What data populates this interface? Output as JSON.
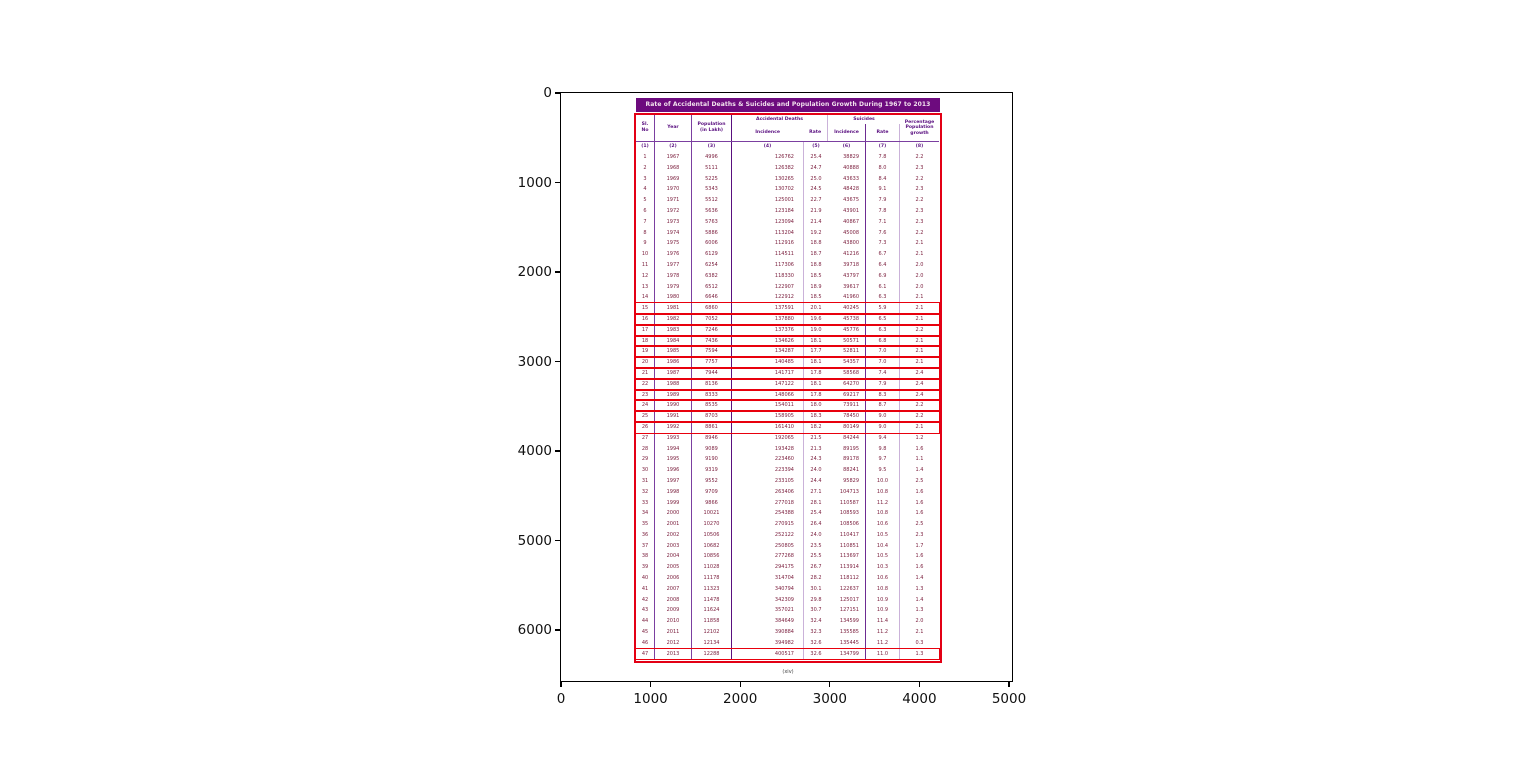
{
  "chart_data": {
    "type": "table",
    "title": "Rate of Accidental Deaths & Suicides and Population Growth During 1967 to 2013",
    "caption": "(xiv)",
    "axes": {
      "x_ticks": [
        "0",
        "1000",
        "2000",
        "3000",
        "4000",
        "5000"
      ],
      "y_ticks": [
        "0",
        "1000",
        "2000",
        "3000",
        "4000",
        "5000",
        "6000"
      ],
      "grid": "off",
      "note": "matplotlib-style axes displaying the table as an image"
    },
    "columns": {
      "sl_no": "Sl.\nNo",
      "year": "Year",
      "population": "Population\n(in Lakh)",
      "accidental_group": "Accidental Deaths",
      "suicides_group": "Suicides",
      "incidence": "Incidence",
      "rate": "Rate",
      "growth": "Percentage\nPopulation\ngrowth"
    },
    "column_numbers": [
      "(1)",
      "(2)",
      "(3)",
      "(4)",
      "(5)",
      "(6)",
      "(7)",
      "(8)"
    ],
    "rows": [
      [
        1,
        "1967",
        "4996",
        "126762",
        "25.4",
        "38829",
        "7.8",
        "2.2"
      ],
      [
        2,
        "1968",
        "5111",
        "126382",
        "24.7",
        "40888",
        "8.0",
        "2.3"
      ],
      [
        3,
        "1969",
        "5225",
        "130265",
        "25.0",
        "43633",
        "8.4",
        "2.2"
      ],
      [
        4,
        "1970",
        "5343",
        "130702",
        "24.5",
        "48428",
        "9.1",
        "2.3"
      ],
      [
        5,
        "1971",
        "5512",
        "125001",
        "22.7",
        "43675",
        "7.9",
        "2.2"
      ],
      [
        6,
        "1972",
        "5636",
        "123184",
        "21.9",
        "43901",
        "7.8",
        "2.3"
      ],
      [
        7,
        "1973",
        "5763",
        "123094",
        "21.4",
        "40867",
        "7.1",
        "2.3"
      ],
      [
        8,
        "1974",
        "5886",
        "113204",
        "19.2",
        "45008",
        "7.6",
        "2.2"
      ],
      [
        9,
        "1975",
        "6006",
        "112916",
        "18.8",
        "43800",
        "7.3",
        "2.1"
      ],
      [
        10,
        "1976",
        "6129",
        "114511",
        "18.7",
        "41216",
        "6.7",
        "2.1"
      ],
      [
        11,
        "1977",
        "6254",
        "117306",
        "18.8",
        "39718",
        "6.4",
        "2.0"
      ],
      [
        12,
        "1978",
        "6382",
        "118330",
        "18.5",
        "43797",
        "6.9",
        "2.0"
      ],
      [
        13,
        "1979",
        "6512",
        "122907",
        "18.9",
        "39617",
        "6.1",
        "2.0"
      ],
      [
        14,
        "1980",
        "6646",
        "122912",
        "18.5",
        "41960",
        "6.3",
        "2.1"
      ],
      [
        15,
        "1981",
        "6860",
        "137591",
        "20.1",
        "40245",
        "5.9",
        "2.1"
      ],
      [
        16,
        "1982",
        "7052",
        "137880",
        "19.6",
        "45738",
        "6.5",
        "2.1"
      ],
      [
        17,
        "1983",
        "7246",
        "137376",
        "19.0",
        "45776",
        "6.3",
        "2.2"
      ],
      [
        18,
        "1984",
        "7436",
        "134626",
        "18.1",
        "50571",
        "6.8",
        "2.1"
      ],
      [
        19,
        "1985",
        "7594",
        "134287",
        "17.7",
        "52811",
        "7.0",
        "2.1"
      ],
      [
        20,
        "1986",
        "7757",
        "140485",
        "18.1",
        "54357",
        "7.0",
        "2.1"
      ],
      [
        21,
        "1987",
        "7944",
        "141717",
        "17.8",
        "58568",
        "7.4",
        "2.4"
      ],
      [
        22,
        "1988",
        "8136",
        "147122",
        "18.1",
        "64270",
        "7.9",
        "2.4"
      ],
      [
        23,
        "1989",
        "8333",
        "148066",
        "17.8",
        "69217",
        "8.3",
        "2.4"
      ],
      [
        24,
        "1990",
        "8535",
        "154011",
        "18.0",
        "73911",
        "8.7",
        "2.2"
      ],
      [
        25,
        "1991",
        "8703",
        "158905",
        "18.3",
        "78450",
        "9.0",
        "2.2"
      ],
      [
        26,
        "1992",
        "8861",
        "161410",
        "18.2",
        "80149",
        "9.0",
        "2.1"
      ],
      [
        27,
        "1993",
        "8946",
        "192065",
        "21.5",
        "84244",
        "9.4",
        "1.2"
      ],
      [
        28,
        "1994",
        "9089",
        "193428",
        "21.3",
        "89195",
        "9.8",
        "1.6"
      ],
      [
        29,
        "1995",
        "9190",
        "223460",
        "24.3",
        "89178",
        "9.7",
        "1.1"
      ],
      [
        30,
        "1996",
        "9319",
        "223394",
        "24.0",
        "88241",
        "9.5",
        "1.4"
      ],
      [
        31,
        "1997",
        "9552",
        "233105",
        "24.4",
        "95829",
        "10.0",
        "2.5"
      ],
      [
        32,
        "1998",
        "9709",
        "263406",
        "27.1",
        "104713",
        "10.8",
        "1.6"
      ],
      [
        33,
        "1999",
        "9866",
        "277018",
        "28.1",
        "110587",
        "11.2",
        "1.6"
      ],
      [
        34,
        "2000",
        "10021",
        "254388",
        "25.4",
        "108593",
        "10.8",
        "1.6"
      ],
      [
        35,
        "2001",
        "10270",
        "270915",
        "26.4",
        "108506",
        "10.6",
        "2.5"
      ],
      [
        36,
        "2002",
        "10506",
        "252122",
        "24.0",
        "110417",
        "10.5",
        "2.3"
      ],
      [
        37,
        "2003",
        "10682",
        "250805",
        "23.5",
        "110851",
        "10.4",
        "1.7"
      ],
      [
        38,
        "2004",
        "10856",
        "277268",
        "25.5",
        "113697",
        "10.5",
        "1.6"
      ],
      [
        39,
        "2005",
        "11028",
        "294175",
        "26.7",
        "113914",
        "10.3",
        "1.6"
      ],
      [
        40,
        "2006",
        "11178",
        "314704",
        "28.2",
        "118112",
        "10.6",
        "1.4"
      ],
      [
        41,
        "2007",
        "11323",
        "340794",
        "30.1",
        "122637",
        "10.8",
        "1.3"
      ],
      [
        42,
        "2008",
        "11478",
        "342309",
        "29.8",
        "125017",
        "10.9",
        "1.4"
      ],
      [
        43,
        "2009",
        "11624",
        "357021",
        "30.7",
        "127151",
        "10.9",
        "1.3"
      ],
      [
        44,
        "2010",
        "11858",
        "384649",
        "32.4",
        "134599",
        "11.4",
        "2.0"
      ],
      [
        45,
        "2011",
        "12102",
        "390884",
        "32.3",
        "135585",
        "11.2",
        "2.1"
      ],
      [
        46,
        "2012",
        "12134",
        "394982",
        "32.6",
        "135445",
        "11.2",
        "0.3"
      ],
      [
        47,
        "2013",
        "12288",
        "400517",
        "32.6",
        "134799",
        "11.0",
        "1.3"
      ]
    ],
    "highlighted_rows": [
      15,
      16,
      17,
      18,
      19,
      20,
      21,
      22,
      23,
      24,
      25,
      26,
      47
    ],
    "colors": {
      "title_bar_bg": "#6d0b7e",
      "title_text": "#f3e4ee",
      "outer_border_red": "#e30015",
      "row_box_red": "#e8000d",
      "column_line_purple": "#7b3fa0",
      "header_text_purple": "#5a1080",
      "data_text_maroon": "#7d2240"
    }
  }
}
